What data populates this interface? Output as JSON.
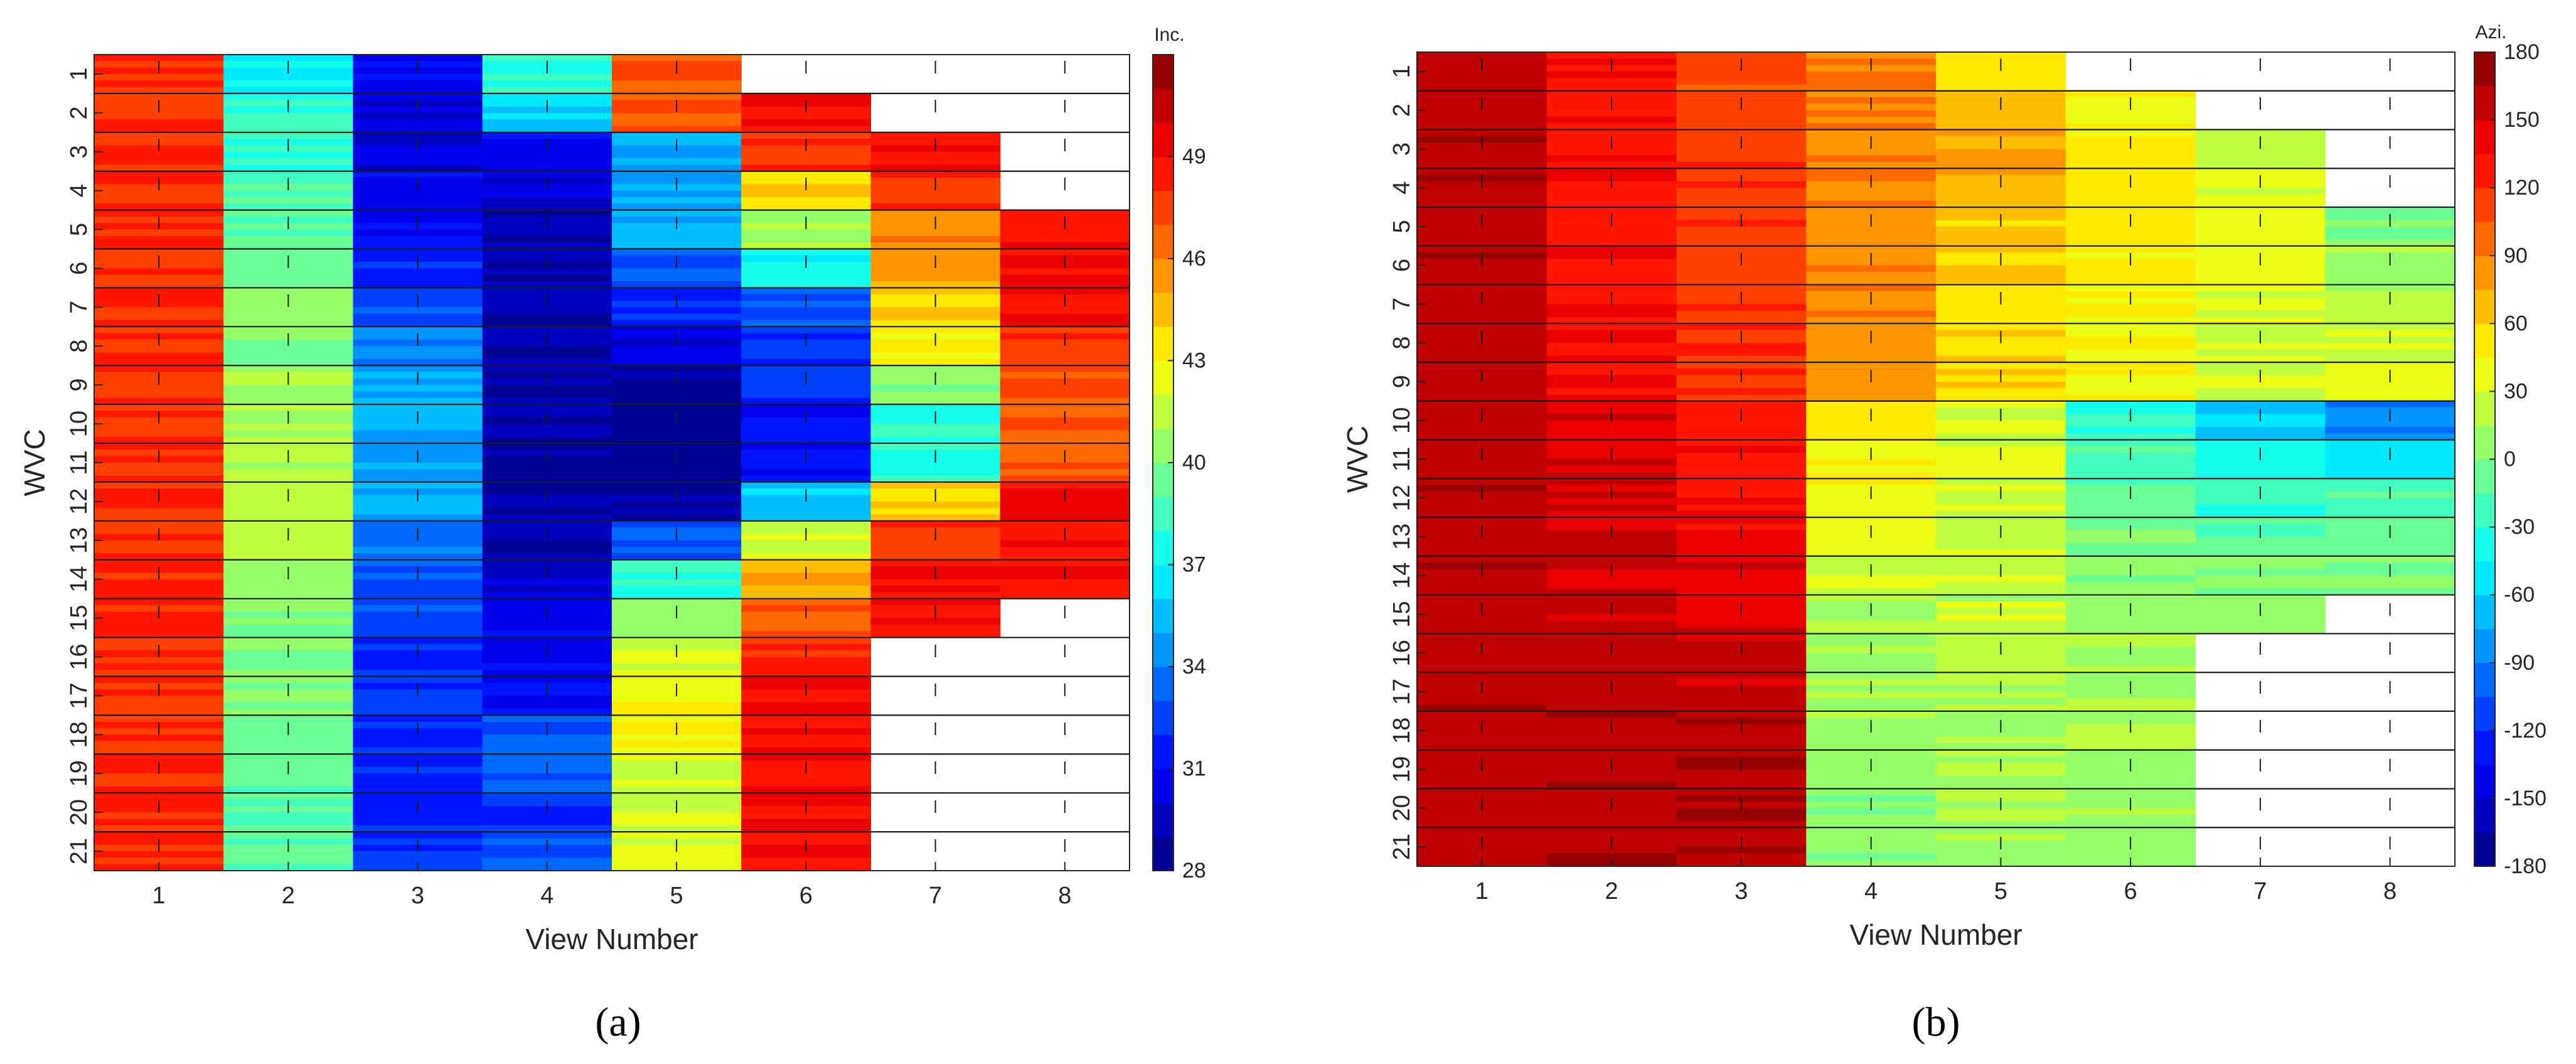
{
  "chart_data": [
    {
      "id": "a",
      "type": "heatmap",
      "panel_label": "(a)",
      "xlabel": "View Number",
      "ylabel": "WVC",
      "x_ticks": [
        "1",
        "2",
        "3",
        "4",
        "5",
        "6",
        "7",
        "8"
      ],
      "y_ticks": [
        "1",
        "2",
        "3",
        "4",
        "5",
        "6",
        "7",
        "8",
        "9",
        "10",
        "11",
        "12",
        "13",
        "14",
        "15",
        "16",
        "17",
        "18",
        "19",
        "20",
        "21"
      ],
      "colorbar": {
        "title": "Inc.",
        "range": [
          28,
          52
        ],
        "ticks": [
          "28",
          "31",
          "34",
          "37",
          "40",
          "43",
          "46",
          "49"
        ],
        "levels": 24
      },
      "grid": true,
      "valid_wvc_range_per_view": [
        [
          1,
          21
        ],
        [
          1,
          21
        ],
        [
          1,
          21
        ],
        [
          1,
          21
        ],
        [
          1,
          21
        ],
        [
          2,
          21
        ],
        [
          3,
          15
        ],
        [
          5,
          14
        ]
      ],
      "mean_value_per_view_wvc": [
        [
          48,
          48,
          48,
          48,
          48,
          48,
          48,
          48,
          48,
          48,
          48,
          48,
          48,
          48,
          48,
          48,
          48,
          48,
          48,
          48,
          48
        ],
        [
          37,
          38,
          38,
          39,
          39,
          39.5,
          40,
          40,
          41,
          41,
          41,
          41.5,
          41.5,
          40.5,
          40,
          40,
          40,
          40,
          39.5,
          39,
          39
        ],
        [
          31,
          30,
          30,
          30.5,
          31,
          32,
          33,
          34,
          35,
          35,
          35,
          35,
          34,
          33,
          33,
          32,
          32,
          32,
          32,
          32,
          32
        ],
        [
          38,
          36,
          31,
          30,
          29,
          29,
          29,
          29,
          29,
          29,
          29,
          29,
          29,
          30,
          31,
          31,
          31,
          33,
          33,
          32,
          33
        ],
        [
          47,
          47,
          35,
          35,
          35,
          33,
          32,
          30,
          29,
          28.5,
          28.5,
          29,
          33,
          38,
          40,
          42,
          43,
          43,
          42,
          42,
          42
        ],
        [
          null,
          49,
          48,
          44,
          41,
          37,
          33,
          32,
          32,
          31,
          31,
          36,
          42,
          45,
          47,
          48,
          49,
          49,
          49,
          49,
          49
        ],
        [
          null,
          null,
          49,
          48,
          46,
          45,
          44,
          43,
          40,
          38,
          38,
          44,
          48,
          49,
          49,
          null,
          null,
          null,
          null,
          null,
          null
        ],
        [
          null,
          null,
          null,
          null,
          49,
          49,
          49,
          48,
          47,
          47,
          47,
          49,
          49,
          49,
          null,
          null,
          null,
          null,
          null,
          null,
          null
        ]
      ]
    },
    {
      "id": "b",
      "type": "heatmap",
      "panel_label": "(b)",
      "xlabel": "View Number",
      "ylabel": "WVC",
      "x_ticks": [
        "1",
        "2",
        "3",
        "4",
        "5",
        "6",
        "7",
        "8"
      ],
      "y_ticks": [
        "1",
        "2",
        "3",
        "4",
        "5",
        "6",
        "7",
        "8",
        "9",
        "10",
        "11",
        "12",
        "13",
        "14",
        "15",
        "16",
        "17",
        "18",
        "19",
        "20",
        "21"
      ],
      "colorbar": {
        "title": "Azi.",
        "range": [
          -180,
          180
        ],
        "ticks": [
          "-180",
          "-150",
          "-120",
          "-90",
          "-60",
          "-30",
          "0",
          "30",
          "60",
          "90",
          "120",
          "150",
          "180"
        ],
        "levels": 24
      },
      "grid": true,
      "valid_wvc_range_per_view": [
        [
          1,
          21
        ],
        [
          1,
          21
        ],
        [
          1,
          21
        ],
        [
          1,
          21
        ],
        [
          1,
          21
        ],
        [
          2,
          21
        ],
        [
          3,
          15
        ],
        [
          5,
          14
        ]
      ],
      "mean_value_per_view_wvc": [
        [
          158,
          158,
          158,
          158,
          158,
          158,
          158,
          158,
          158,
          158,
          158,
          158,
          158,
          158,
          158,
          158,
          158,
          158,
          158,
          158,
          158
        ],
        [
          130,
          131,
          132,
          133,
          134,
          135,
          136,
          137,
          138,
          148,
          150,
          152,
          154,
          155,
          156,
          157,
          158,
          159,
          160,
          161,
          161
        ],
        [
          112,
          113,
          114,
          115,
          116,
          117,
          118,
          119,
          120,
          128,
          130,
          135,
          140,
          145,
          148,
          152,
          155,
          158,
          160,
          161,
          161
        ],
        [
          92,
          91,
          90,
          88,
          87,
          86,
          85,
          84,
          83,
          50,
          45,
          40,
          35,
          25,
          20,
          15,
          12,
          10,
          8,
          6,
          5
        ],
        [
          60,
          70,
          72,
          70,
          65,
          62,
          60,
          58,
          56,
          32,
          30,
          28,
          26,
          24,
          22,
          20,
          18,
          15,
          12,
          10,
          10
        ],
        [
          null,
          45,
          50,
          52,
          50,
          48,
          46,
          44,
          42,
          -30,
          -20,
          -10,
          0,
          5,
          8,
          10,
          12,
          12,
          10,
          8,
          8
        ],
        [
          null,
          null,
          20,
          30,
          35,
          35,
          34,
          32,
          30,
          -60,
          -45,
          -25,
          -10,
          0,
          5,
          null,
          null,
          null,
          null,
          null,
          null
        ],
        [
          null,
          null,
          null,
          null,
          0,
          10,
          20,
          30,
          35,
          -85,
          -60,
          -20,
          -5,
          0,
          null,
          null,
          null,
          null,
          null,
          null,
          null
        ]
      ]
    }
  ]
}
